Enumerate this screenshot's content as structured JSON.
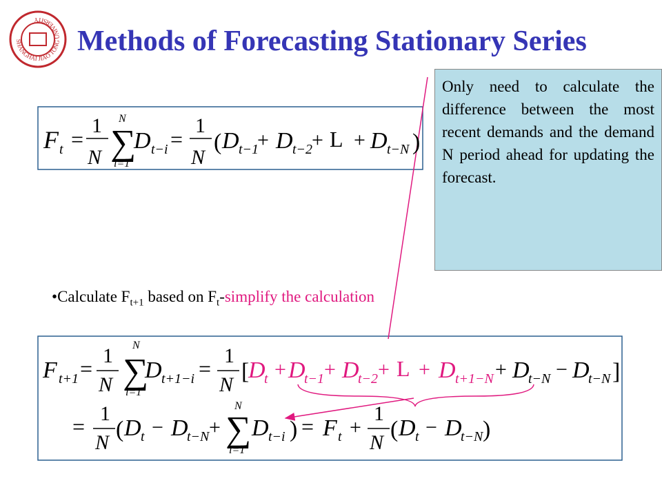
{
  "title": "Methods of Forecasting Stationary Series",
  "logo_text": "SHANGHAI JIAO TONG UNIVERSITY",
  "callout": "Only need to calculate the difference between the most recent demands and the demand N period ahead for updating the forecast.",
  "bullet": [
    "•",
    "Calculate F",
    "t+1",
    " based on F",
    "t",
    "-",
    "simplify the calculation"
  ],
  "formula_1": [
    "F",
    "t",
    "=",
    "1",
    "N",
    "N",
    "∑",
    "i=1",
    "D",
    "t−i",
    "=",
    "1",
    "N",
    "(",
    "D",
    "t−1",
    "+",
    "D",
    "t−2",
    "+",
    "L",
    "+",
    "D",
    "t−N",
    ")"
  ],
  "formula_2_line_1": [
    "F",
    "t+1",
    "=",
    "1",
    "N",
    "N",
    "∑",
    "i=1",
    "D",
    "t+1−i",
    "=",
    "1",
    "N",
    "[",
    "D",
    "t",
    "+",
    "D",
    "t−1",
    "+",
    "D",
    "t−2",
    "+",
    "L",
    "+",
    "D",
    "t+1−N",
    "+",
    "D",
    "t−N",
    "−",
    "D",
    "t−N",
    "]"
  ],
  "formula_2_line_2": [
    "=",
    "1",
    "N",
    "(",
    "D",
    "t",
    "−",
    "D",
    "t−N",
    "+",
    "N",
    "∑",
    "i=1",
    "D",
    "t−i",
    ")",
    "=",
    "F",
    "t",
    "+",
    "1",
    "N",
    "(",
    "D",
    "t",
    "−",
    "D",
    "t−N",
    ")"
  ]
}
